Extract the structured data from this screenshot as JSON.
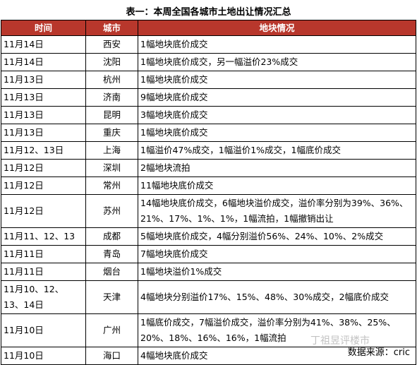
{
  "title": "表一：本周全国各城市土地出让情况汇总",
  "table": {
    "header": [
      "时间",
      "城市",
      "地块情况"
    ],
    "rows": [
      [
        "11月14日",
        "西安",
        "1幅地块底价成交"
      ],
      [
        "11月14日",
        "沈阳",
        "1幅地块底价成交，另一幅溢价23%成交"
      ],
      [
        "11月13日",
        "杭州",
        "1幅地块底价成交"
      ],
      [
        "11月13日",
        "济南",
        "9幅地块底价成交"
      ],
      [
        "11月13日",
        "昆明",
        "3幅地块底价成交"
      ],
      [
        "11月13日",
        "重庆",
        "1幅地块底价成交"
      ],
      [
        "11月12、13日",
        "上海",
        "1幅溢价47%成交，1幅溢价1%成交，1幅底价成交"
      ],
      [
        "11月12日",
        "深圳",
        "2幅地块流拍"
      ],
      [
        "11月12日",
        "常州",
        "11幅地块底价成交"
      ],
      [
        "11月12日",
        "苏州",
        "14幅地块底价成交，6幅地块溢价成交，溢价率分别为39%、36%、21%、17%、1%、1%，1幅流拍，1幅撤销出让"
      ],
      [
        "11月11、12、13",
        "成都",
        "5幅地块底价成交，4幅分别溢价56%、24%、10%、2%成交"
      ],
      [
        "11月11日",
        "青岛",
        "7幅地块底价成交"
      ],
      [
        "11月11日",
        "烟台",
        "1幅地块溢价1%成交"
      ],
      [
        "11月10、12、13、14日",
        "天津",
        "4幅地块分别溢价17%、15%、48%、30%成交，2幅底价成交"
      ],
      [
        "11月10日",
        "广州",
        "1幅底价成交，7幅溢价成交，溢价率分别为41%、38%、25%、20%、18%、16%、16%，1幅流拍"
      ],
      [
        "11月10日",
        "海口",
        "4幅地块底价成交"
      ]
    ]
  },
  "watermark": "丁祖昱评楼市",
  "source": "数据来源：cric"
}
